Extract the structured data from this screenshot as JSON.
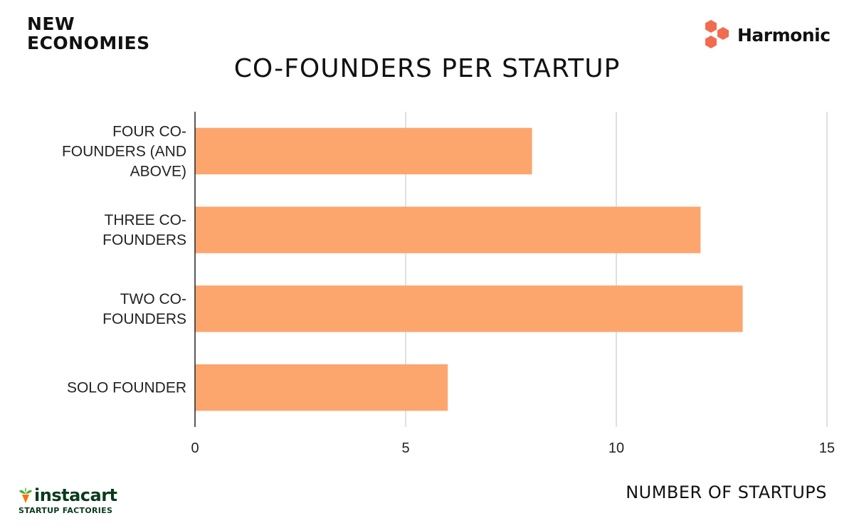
{
  "brand": {
    "line1": "NEW",
    "line2": "ECONOMIES",
    "harmonic": "Harmonic",
    "instacart": "instacart",
    "instacart_sub": "STARTUP FACTORIES",
    "harmonic_color": "#f26b4f",
    "instacart_leaf_color": "#43b02a",
    "instacart_carrot_color": "#ff7009"
  },
  "chart_data": {
    "type": "bar",
    "orientation": "horizontal",
    "title": "CO-FOUNDERS PER STARTUP",
    "xlabel": "NUMBER OF STARTUPS",
    "ylabel": "",
    "categories": [
      "FOUR CO-FOUNDERS (AND ABOVE)",
      "THREE CO-FOUNDERS",
      "TWO CO-FOUNDERS",
      "SOLO FOUNDER"
    ],
    "category_label_lines": [
      [
        "FOUR CO-",
        "FOUNDERS (AND",
        "ABOVE)"
      ],
      [
        "THREE CO-",
        "FOUNDERS"
      ],
      [
        "TWO CO-",
        "FOUNDERS"
      ],
      [
        "SOLO FOUNDER"
      ]
    ],
    "values": [
      8,
      12,
      13,
      6
    ],
    "xlim": [
      0,
      15
    ],
    "xticks": [
      "0",
      "5",
      "10",
      "15"
    ],
    "grid": true,
    "bar_color": "#fca66e"
  }
}
